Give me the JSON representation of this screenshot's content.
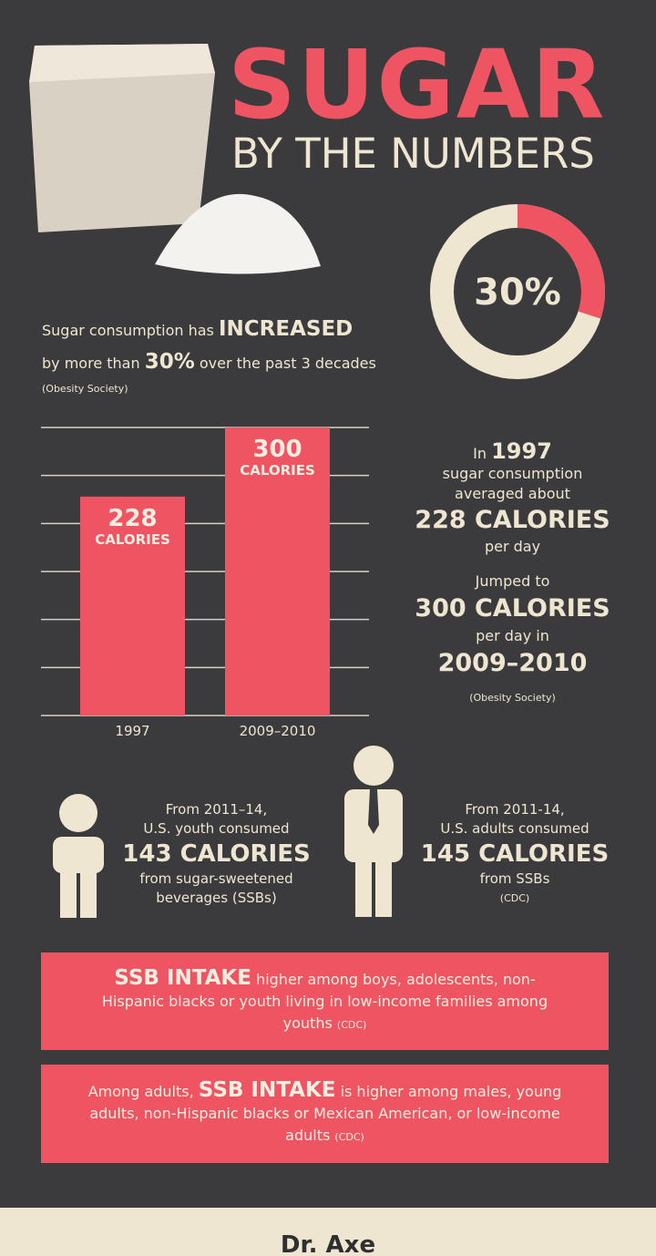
{
  "chart_data": [
    {
      "type": "donut",
      "values": [
        30
      ],
      "value_labels": [
        "30%"
      ],
      "colors": [
        "#ef5462",
        "#efe6d2"
      ]
    },
    {
      "type": "bar",
      "categories": [
        "1997",
        "2009–2010"
      ],
      "values": [
        228,
        300
      ],
      "unit_label": "CALORIES",
      "color": "#ef5462",
      "ylim": [
        0,
        300
      ],
      "yticks": [
        0,
        50,
        100,
        150,
        200,
        250,
        300
      ],
      "grid": true
    }
  ],
  "header": {
    "title": "SUGAR",
    "subtitle": "BY THE NUMBERS"
  },
  "increase": {
    "lead": "Sugar consumption has",
    "emphasis": "INCREASED",
    "line2_pre": "by more than",
    "line2_post": "over the past 3 decades",
    "source": "(Obesity Society)"
  },
  "trend": {
    "in": "In",
    "year": "1997",
    "line1": "sugar consumption",
    "line2": "averaged about",
    "first_amount": "228 CALORIES",
    "per_day": "per day",
    "jumped": "Jumped to",
    "second_amount": "300 CALORIES",
    "per_day_in": "per day in",
    "second_years": "2009–2010",
    "source": "(Obesity Society)"
  },
  "youth": {
    "line1": "From 2011–14,",
    "line2": "U.S. youth consumed",
    "amount": "143 CALORIES",
    "line3": "from sugar-sweetened",
    "line4": "beverages (SSBs)"
  },
  "adults": {
    "line1": "From 2011-14,",
    "line2": "U.S. adults consumed",
    "amount": "145 CALORIES",
    "line3": "from SSBs",
    "source": "(CDC)"
  },
  "box1": {
    "emphasis": "SSB INTAKE",
    "text": "higher among boys, adolescents, non-Hispanic blacks or youth living in low-income families among youths",
    "source": "(CDC)"
  },
  "box2": {
    "lead": "Among adults,",
    "emphasis": "SSB INTAKE",
    "text": "is higher among males, young adults, non-Hispanic blacks or Mexican American, or low-income adults",
    "source": "(CDC)"
  },
  "footer": {
    "brand": "Dr. Axe"
  }
}
